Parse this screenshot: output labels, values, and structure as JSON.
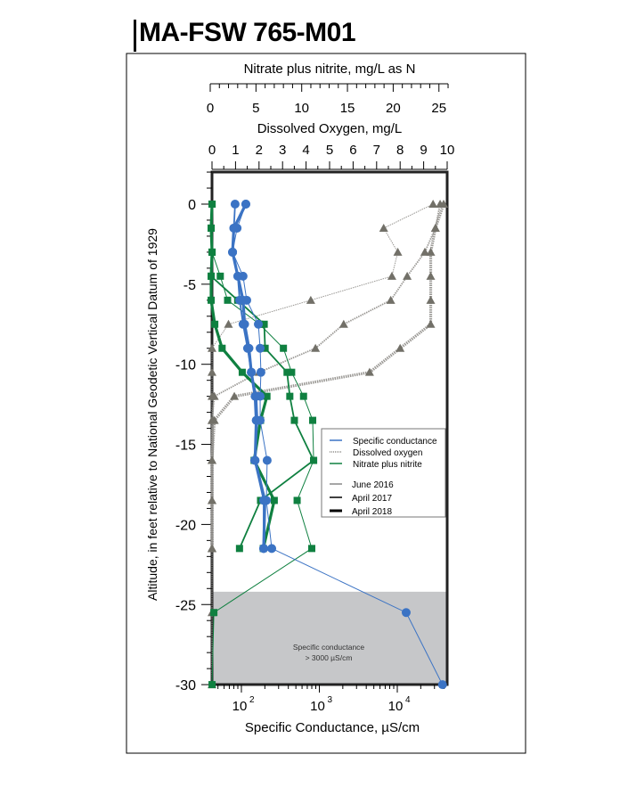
{
  "title": "MA-FSW  765-M01",
  "chart_data": {
    "type": "line",
    "y_axis": {
      "label": "Altitude, in feet relative to National Geodetic Vertical Datum of 1929",
      "range": [
        -30,
        2
      ],
      "ticks": [
        0,
        -5,
        -10,
        -15,
        -20,
        -25,
        -30
      ]
    },
    "x_axes": {
      "nitrate": {
        "label": "Nitrate plus nitrite, mg/L as N",
        "range": [
          0,
          26
        ],
        "ticks": [
          0,
          5,
          10,
          15,
          20,
          25
        ]
      },
      "oxygen": {
        "label": "Dissolved Oxygen, mg/L",
        "range": [
          0,
          10
        ],
        "ticks": [
          0,
          1,
          2,
          3,
          4,
          5,
          6,
          7,
          8,
          9,
          10
        ]
      },
      "conductance": {
        "label": "Specific Conductance, µS/cm",
        "scale": "log",
        "range": [
          42,
          44000
        ],
        "ticks": [
          {
            "base": "10",
            "exp": "2"
          },
          {
            "base": "10",
            "exp": "3"
          },
          {
            "base": "10",
            "exp": "4"
          }
        ]
      }
    },
    "shaded_region": {
      "label_line1": "Specific conductance",
      "label_line2": "> 3000 µS/cm",
      "altitude_range": [
        -24.2,
        -30
      ],
      "color": "#c6c7c9"
    },
    "legend": {
      "placement": "center-right",
      "variables": [
        {
          "name": "Specific conductance",
          "color": "#3b73c4"
        },
        {
          "name": "Dissolved oxygen",
          "color": "#8c8a86"
        },
        {
          "name": "Nitrate plus nitrite",
          "color": "#0f8040"
        }
      ],
      "dates": [
        "June 2016",
        "April 2017",
        "April 2018"
      ]
    },
    "altitudes": [
      0,
      -1.5,
      -3,
      -4.5,
      -6,
      -7.5,
      -9,
      -10.5,
      -12,
      -13.5,
      -16,
      -18.5,
      -21.5,
      -25.5,
      -30
    ],
    "series": [
      {
        "variable": "Specific conductance",
        "date": "June 2016",
        "axis": "conductance",
        "values": [
          114,
          88,
          77,
          105,
          117,
          165,
          174,
          178,
          174,
          174,
          214,
          209,
          245,
          13000,
          38000
        ]
      },
      {
        "variable": "Specific conductance",
        "date": "April 2017",
        "axis": "conductance",
        "values": [
          83,
          80,
          77,
          90,
          95,
          105,
          120,
          134,
          156,
          161,
          148,
          193,
          193,
          null,
          null
        ]
      },
      {
        "variable": "Specific conductance",
        "date": "April 2018",
        "axis": "conductance",
        "values": [
          114,
          80,
          77,
          90,
          105,
          110,
          125,
          134,
          150,
          155,
          150,
          200,
          193,
          null,
          null
        ]
      },
      {
        "variable": "Dissolved oxygen",
        "date": "June 2016",
        "axis": "oxygen",
        "values": [
          9.4,
          7.3,
          7.9,
          7.65,
          4.2,
          0.7,
          0,
          0,
          0,
          0,
          0,
          0,
          0,
          0,
          0
        ]
      },
      {
        "variable": "Dissolved oxygen",
        "date": "April 2017",
        "axis": "oxygen",
        "values": [
          9.7,
          9.5,
          9.05,
          8.3,
          7.6,
          5.6,
          4.4,
          2.0,
          0.1,
          0,
          0,
          0,
          0,
          null,
          null
        ]
      },
      {
        "variable": "Dissolved oxygen",
        "date": "April 2018",
        "axis": "oxygen",
        "values": [
          9.85,
          9.5,
          9.3,
          9.3,
          9.3,
          9.3,
          8.0,
          6.7,
          0.95,
          0.1,
          0,
          0,
          0,
          null,
          null
        ]
      },
      {
        "variable": "Nitrate plus nitrite",
        "date": "June 2016",
        "axis": "nitrate",
        "values": [
          0.2,
          0.1,
          0.2,
          1.1,
          1.9,
          5.4,
          8.0,
          8.9,
          10.2,
          11.2,
          11.3,
          9.5,
          11.1,
          0.4,
          0.2
        ]
      },
      {
        "variable": "Nitrate plus nitrite",
        "date": "April 2017",
        "axis": "nitrate",
        "values": [
          0.2,
          0.1,
          0.2,
          0.1,
          3.0,
          5.9,
          6.0,
          8.4,
          8.7,
          9.2,
          11.3,
          5.5,
          3.2,
          null,
          null
        ]
      },
      {
        "variable": "Nitrate plus nitrite",
        "date": "April 2018",
        "axis": "nitrate",
        "values": [
          0.2,
          0.1,
          0.2,
          0.1,
          0.1,
          0.5,
          1.3,
          3.5,
          6.2,
          5.5,
          4.8,
          7.0,
          5.8,
          null,
          null
        ]
      }
    ]
  }
}
